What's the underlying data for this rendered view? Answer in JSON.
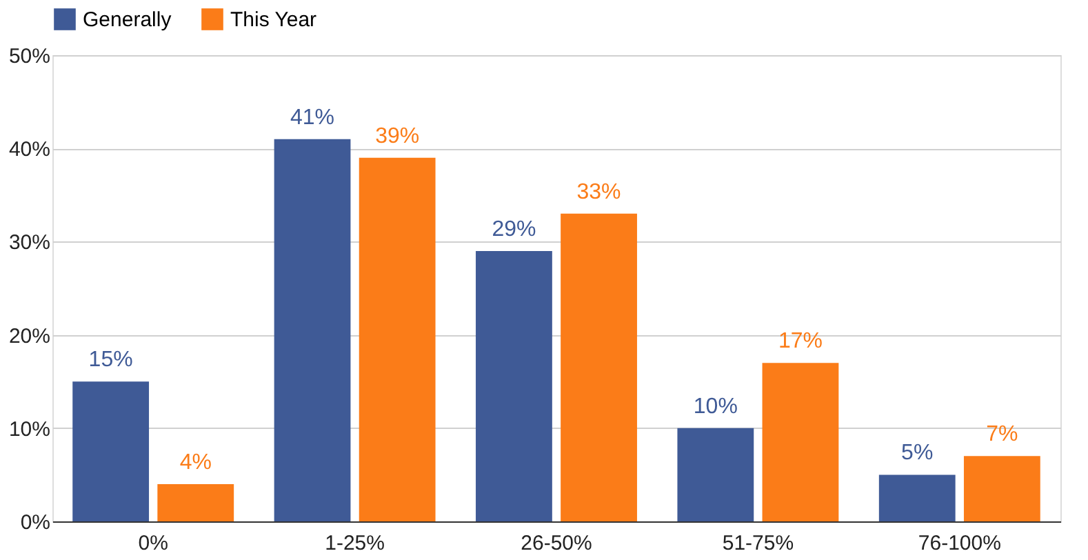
{
  "chart_data": {
    "type": "bar",
    "categories": [
      "0%",
      "1-25%",
      "26-50%",
      "51-75%",
      "76-100%"
    ],
    "series": [
      {
        "name": "Generally",
        "color": "#3f5a96",
        "values": [
          15,
          41,
          29,
          10,
          5
        ],
        "value_labels": [
          "15%",
          "41%",
          "29%",
          "10%",
          "5%"
        ]
      },
      {
        "name": "This Year",
        "color": "#fb7c18",
        "values": [
          4,
          39,
          33,
          17,
          7
        ],
        "value_labels": [
          "4%",
          "39%",
          "33%",
          "17%",
          "7%"
        ]
      }
    ],
    "ylim": [
      0,
      50
    ],
    "yticks": [
      {
        "value": 0,
        "label": "0%"
      },
      {
        "value": 10,
        "label": "10%"
      },
      {
        "value": 20,
        "label": "20%"
      },
      {
        "value": 30,
        "label": "30%"
      },
      {
        "value": 40,
        "label": "40%"
      },
      {
        "value": 50,
        "label": "50%"
      }
    ],
    "grid": "y",
    "legend": "top"
  }
}
